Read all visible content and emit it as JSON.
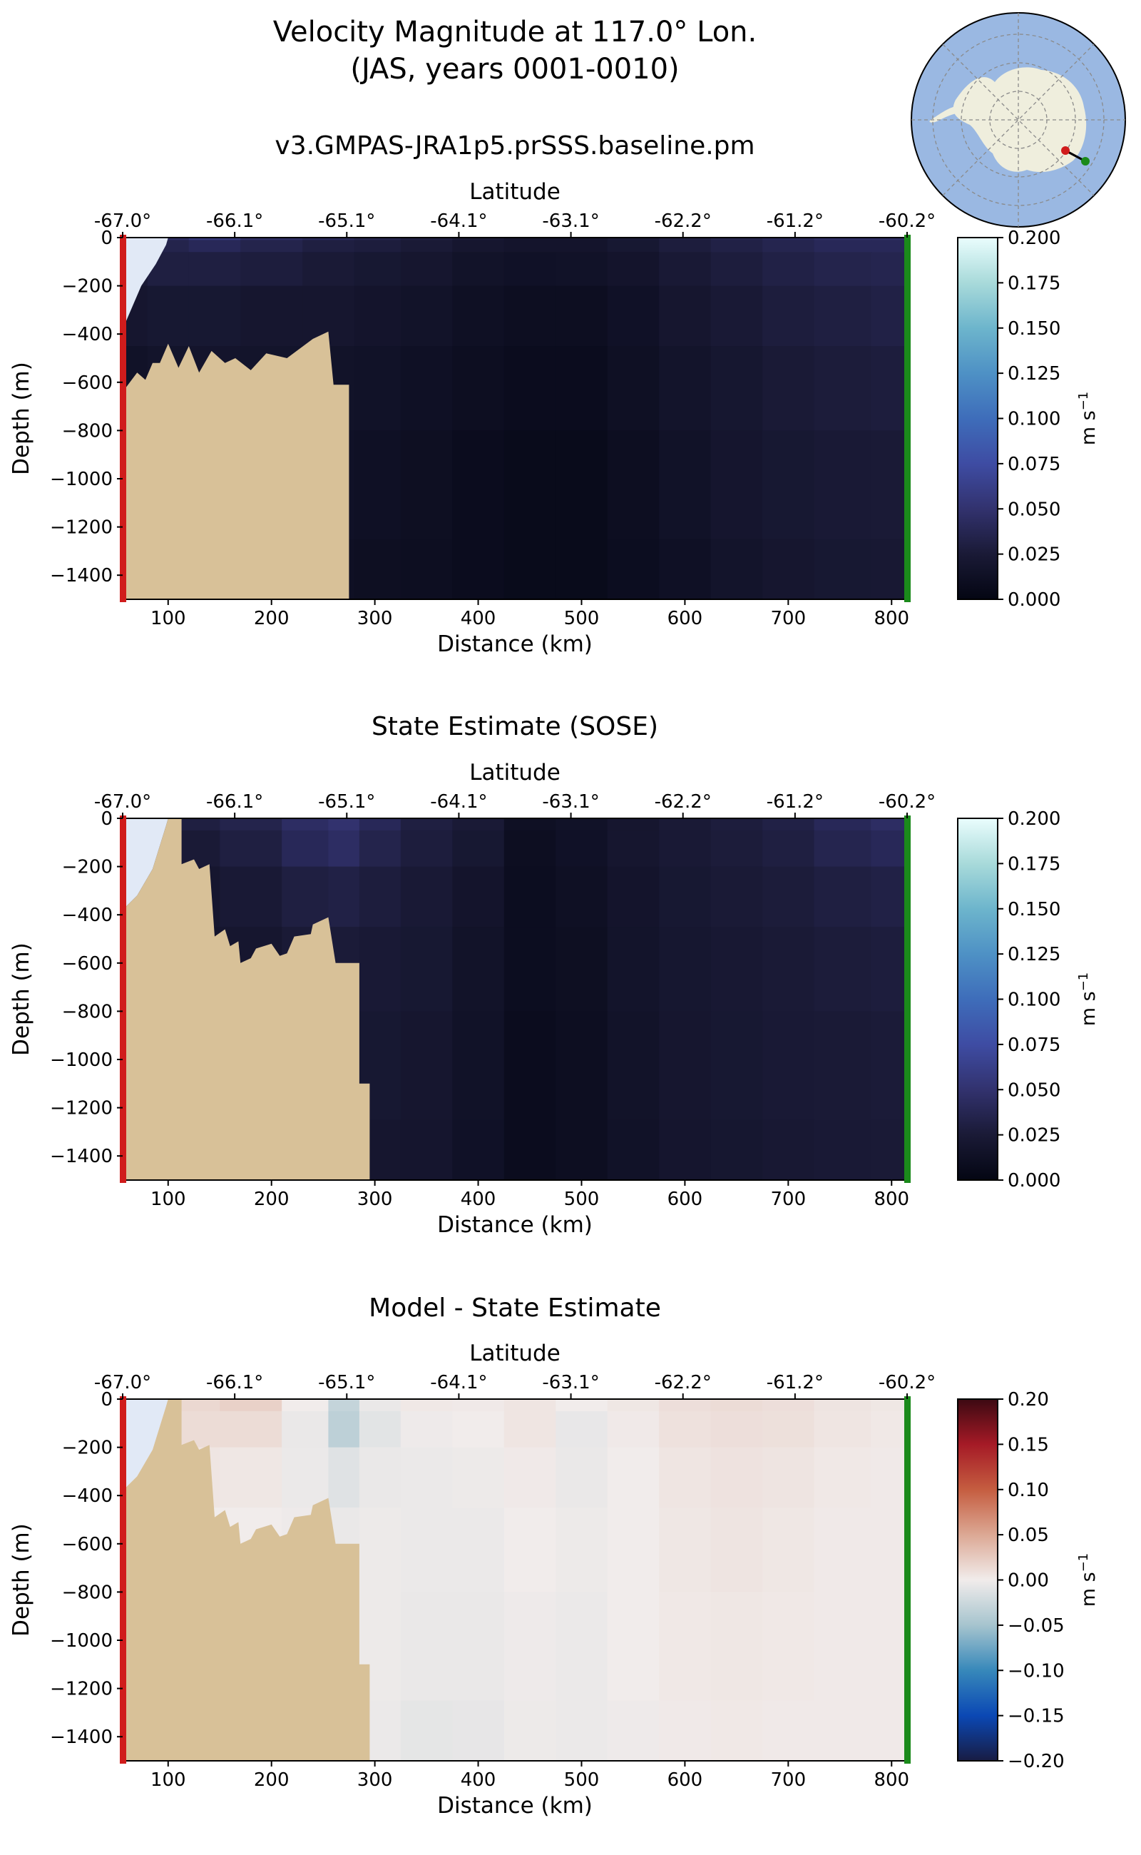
{
  "figure": {
    "title_line1": "Velocity Magnitude at 117.0° Lon.",
    "title_line2": "(JAS, years 0001-0010)"
  },
  "colors": {
    "land": "#d8c198",
    "ice_shelf": "#e1e9f6",
    "south_marker": "#d01c1c",
    "north_marker": "#1b8a1b",
    "ocean_map": "#9ab8e2",
    "continent_map": "#efeedd"
  },
  "chart_data": [
    {
      "type": "heatmap",
      "title": "v3.GMPAS-JRA1p5.prSSS.baseline.pm",
      "xlabel": "Distance (km)",
      "x2label": "Latitude",
      "ylabel": "Depth (m)",
      "colorbar_label": "m s",
      "colorbar_label_sup": "−1",
      "colormap": "ice",
      "clim": [
        0.0,
        0.2
      ],
      "xlim": [
        56,
        815
      ],
      "ylim": [
        -1500,
        0
      ],
      "x_ticks": [
        100,
        200,
        300,
        400,
        500,
        600,
        700,
        800
      ],
      "y_ticks": [
        0,
        -200,
        -400,
        -600,
        -800,
        -1000,
        -1200,
        -1400
      ],
      "y_tick_labels": [
        "0",
        "−200",
        "−400",
        "−600",
        "−800",
        "−1000",
        "−1200",
        "−1400"
      ],
      "lat_ticks": [
        "-67.0°",
        "-66.1°",
        "-65.1°",
        "-64.1°",
        "-63.1°",
        "-62.2°",
        "-61.2°",
        "-60.2°"
      ],
      "cbar_ticks": [
        "0.000",
        "0.025",
        "0.050",
        "0.075",
        "0.100",
        "0.125",
        "0.150",
        "0.175",
        "0.200"
      ],
      "field": {
        "distance_km": [
          60,
          100,
          140,
          200,
          260,
          300,
          350,
          400,
          450,
          500,
          550,
          600,
          650,
          700,
          750,
          810
        ],
        "depth_m": [
          0,
          -20,
          -100,
          -300,
          -600,
          -1000,
          -1500
        ],
        "values": [
          [
            0.035,
            0.045,
            0.055,
            0.045,
            0.04,
            0.035,
            0.03,
            0.025,
            0.02,
            0.02,
            0.025,
            0.03,
            0.035,
            0.04,
            0.045,
            0.045
          ],
          [
            0.03,
            0.035,
            0.04,
            0.035,
            0.03,
            0.028,
            0.025,
            0.02,
            0.018,
            0.018,
            0.022,
            0.028,
            0.032,
            0.036,
            0.04,
            0.04
          ],
          [
            0.025,
            0.03,
            0.03,
            0.028,
            0.025,
            0.022,
            0.02,
            0.016,
            0.014,
            0.015,
            0.018,
            0.024,
            0.028,
            0.032,
            0.035,
            0.036
          ],
          [
            0.02,
            0.022,
            0.022,
            0.02,
            0.02,
            0.018,
            0.016,
            0.012,
            0.01,
            0.01,
            0.014,
            0.02,
            0.024,
            0.028,
            0.03,
            0.032
          ],
          [
            0.015,
            0.017,
            0.018,
            0.017,
            0.016,
            0.015,
            0.013,
            0.01,
            0.008,
            0.008,
            0.012,
            0.017,
            0.021,
            0.025,
            0.027,
            0.028
          ],
          [
            0.012,
            0.013,
            0.014,
            0.014,
            0.014,
            0.013,
            0.011,
            0.008,
            0.006,
            0.006,
            0.01,
            0.015,
            0.019,
            0.022,
            0.024,
            0.025
          ],
          [
            0.01,
            0.011,
            0.012,
            0.012,
            0.012,
            0.011,
            0.01,
            0.008,
            0.006,
            0.006,
            0.009,
            0.013,
            0.017,
            0.02,
            0.022,
            0.023
          ]
        ]
      },
      "bathymetry": [
        [
          56,
          -640
        ],
        [
          70,
          -560
        ],
        [
          78,
          -590
        ],
        [
          85,
          -520
        ],
        [
          92,
          -520
        ],
        [
          100,
          -440
        ],
        [
          110,
          -540
        ],
        [
          120,
          -450
        ],
        [
          130,
          -560
        ],
        [
          142,
          -470
        ],
        [
          155,
          -520
        ],
        [
          165,
          -500
        ],
        [
          180,
          -550
        ],
        [
          195,
          -480
        ],
        [
          215,
          -500
        ],
        [
          240,
          -420
        ],
        [
          255,
          -390
        ],
        [
          260,
          -610
        ],
        [
          275,
          -610
        ],
        [
          275,
          -1500
        ]
      ],
      "ice_shelf": [
        [
          56,
          0
        ],
        [
          100,
          0
        ],
        [
          98,
          -30
        ],
        [
          88,
          -110
        ],
        [
          74,
          -200
        ],
        [
          64,
          -300
        ],
        [
          56,
          -380
        ]
      ]
    },
    {
      "type": "heatmap",
      "title": "State Estimate (SOSE)",
      "xlabel": "Distance (km)",
      "x2label": "Latitude",
      "ylabel": "Depth (m)",
      "colorbar_label": "m s",
      "colorbar_label_sup": "−1",
      "colormap": "ice",
      "clim": [
        0.0,
        0.2
      ],
      "xlim": [
        56,
        815
      ],
      "ylim": [
        -1500,
        0
      ],
      "x_ticks": [
        100,
        200,
        300,
        400,
        500,
        600,
        700,
        800
      ],
      "y_ticks": [
        0,
        -200,
        -400,
        -600,
        -800,
        -1000,
        -1200,
        -1400
      ],
      "y_tick_labels": [
        "0",
        "−200",
        "−400",
        "−600",
        "−800",
        "−1000",
        "−1200",
        "−1400"
      ],
      "lat_ticks": [
        "-67.0°",
        "-66.1°",
        "-65.1°",
        "-64.1°",
        "-63.1°",
        "-62.2°",
        "-61.2°",
        "-60.2°"
      ],
      "cbar_ticks": [
        "0.000",
        "0.025",
        "0.050",
        "0.075",
        "0.100",
        "0.125",
        "0.150",
        "0.175",
        "0.200"
      ],
      "field": {
        "distance_km": [
          60,
          120,
          180,
          240,
          270,
          300,
          350,
          400,
          450,
          500,
          550,
          600,
          650,
          700,
          750,
          810
        ],
        "depth_m": [
          0,
          -100,
          -300,
          -600,
          -1000,
          -1500
        ],
        "values": [
          [
            0.03,
            0.03,
            0.035,
            0.045,
            0.05,
            0.04,
            0.03,
            0.025,
            0.012,
            0.015,
            0.02,
            0.025,
            0.028,
            0.032,
            0.04,
            0.045
          ],
          [
            0.025,
            0.025,
            0.03,
            0.04,
            0.045,
            0.035,
            0.028,
            0.022,
            0.01,
            0.014,
            0.02,
            0.024,
            0.027,
            0.03,
            0.036,
            0.04
          ],
          [
            0.02,
            0.02,
            0.024,
            0.03,
            0.032,
            0.028,
            0.024,
            0.018,
            0.009,
            0.012,
            0.018,
            0.022,
            0.025,
            0.027,
            0.03,
            0.032
          ],
          [
            0.018,
            0.018,
            0.02,
            0.025,
            0.026,
            0.024,
            0.022,
            0.016,
            0.009,
            0.011,
            0.017,
            0.021,
            0.023,
            0.025,
            0.027,
            0.028
          ],
          [
            0.018,
            0.018,
            0.02,
            0.022,
            0.023,
            0.022,
            0.02,
            0.015,
            0.008,
            0.01,
            0.016,
            0.02,
            0.022,
            0.024,
            0.025,
            0.026
          ],
          [
            0.017,
            0.017,
            0.018,
            0.02,
            0.021,
            0.02,
            0.019,
            0.014,
            0.008,
            0.01,
            0.015,
            0.019,
            0.021,
            0.023,
            0.024,
            0.025
          ]
        ]
      },
      "bathymetry": [
        [
          56,
          -1500
        ],
        [
          56,
          -380
        ],
        [
          70,
          -320
        ],
        [
          85,
          -210
        ],
        [
          98,
          -30
        ],
        [
          100,
          0
        ],
        [
          113,
          0
        ],
        [
          113,
          -190
        ],
        [
          125,
          -170
        ],
        [
          130,
          -210
        ],
        [
          140,
          -190
        ],
        [
          145,
          -490
        ],
        [
          155,
          -460
        ],
        [
          160,
          -530
        ],
        [
          168,
          -510
        ],
        [
          170,
          -600
        ],
        [
          180,
          -580
        ],
        [
          185,
          -540
        ],
        [
          200,
          -520
        ],
        [
          208,
          -570
        ],
        [
          215,
          -560
        ],
        [
          222,
          -490
        ],
        [
          238,
          -480
        ],
        [
          240,
          -440
        ],
        [
          255,
          -410
        ],
        [
          262,
          -600
        ],
        [
          285,
          -600
        ],
        [
          285,
          -1100
        ],
        [
          295,
          -1100
        ],
        [
          295,
          -1500
        ]
      ],
      "ice_shelf": [
        [
          56,
          0
        ],
        [
          100,
          0
        ],
        [
          98,
          -30
        ],
        [
          85,
          -210
        ],
        [
          70,
          -320
        ],
        [
          56,
          -380
        ]
      ]
    },
    {
      "type": "heatmap",
      "title": "Model - State Estimate",
      "xlabel": "Distance (km)",
      "x2label": "Latitude",
      "ylabel": "Depth (m)",
      "colorbar_label": "m s",
      "colorbar_label_sup": "−1",
      "colormap": "balance",
      "clim": [
        -0.2,
        0.2
      ],
      "xlim": [
        56,
        815
      ],
      "ylim": [
        -1500,
        0
      ],
      "x_ticks": [
        100,
        200,
        300,
        400,
        500,
        600,
        700,
        800
      ],
      "y_ticks": [
        0,
        -200,
        -400,
        -600,
        -800,
        -1000,
        -1200,
        -1400
      ],
      "y_tick_labels": [
        "0",
        "−200",
        "−400",
        "−600",
        "−800",
        "−1000",
        "−1200",
        "−1400"
      ],
      "lat_ticks": [
        "-67.0°",
        "-66.1°",
        "-65.1°",
        "-64.1°",
        "-63.1°",
        "-62.2°",
        "-61.2°",
        "-60.2°"
      ],
      "cbar_ticks": [
        "0.20",
        "0.15",
        "0.10",
        "0.05",
        "0.00",
        "−0.05",
        "−0.10",
        "−0.15",
        "−0.20"
      ],
      "field": {
        "distance_km": [
          60,
          120,
          180,
          240,
          270,
          300,
          350,
          400,
          450,
          500,
          550,
          600,
          650,
          700,
          750,
          810
        ],
        "depth_m": [
          0,
          -100,
          -300,
          -600,
          -1000,
          -1500
        ],
        "values": [
          [
            0.01,
            0.015,
            0.02,
            0.0,
            -0.03,
            -0.005,
            0.003,
            0.002,
            0.005,
            0.0,
            0.004,
            0.01,
            0.012,
            0.01,
            0.006,
            0.004
          ],
          [
            0.006,
            0.012,
            0.012,
            -0.005,
            -0.035,
            -0.01,
            -0.002,
            0.0,
            0.005,
            -0.006,
            0.002,
            0.008,
            0.01,
            0.009,
            0.005,
            0.003
          ],
          [
            0.003,
            0.005,
            0.004,
            -0.004,
            -0.012,
            -0.005,
            -0.004,
            -0.003,
            0.002,
            -0.005,
            0.0,
            0.005,
            0.007,
            0.006,
            0.003,
            0.002
          ],
          [
            0.0,
            0.0,
            0.0,
            -0.002,
            -0.005,
            -0.003,
            -0.004,
            -0.004,
            0.0,
            -0.003,
            0.0,
            0.004,
            0.006,
            0.004,
            0.002,
            0.002
          ],
          [
            0.0,
            0.0,
            0.0,
            -0.002,
            -0.003,
            -0.003,
            -0.005,
            -0.005,
            -0.002,
            -0.004,
            0.0,
            0.003,
            0.004,
            0.003,
            0.002,
            0.002
          ],
          [
            0.0,
            0.0,
            0.0,
            -0.002,
            -0.003,
            -0.004,
            -0.008,
            -0.007,
            -0.003,
            -0.004,
            -0.002,
            0.002,
            0.003,
            0.002,
            0.002,
            0.002
          ]
        ]
      },
      "bathymetry": [
        [
          56,
          -1500
        ],
        [
          56,
          -380
        ],
        [
          70,
          -320
        ],
        [
          85,
          -210
        ],
        [
          98,
          -30
        ],
        [
          100,
          0
        ],
        [
          113,
          0
        ],
        [
          113,
          -190
        ],
        [
          125,
          -170
        ],
        [
          130,
          -210
        ],
        [
          140,
          -190
        ],
        [
          145,
          -490
        ],
        [
          155,
          -460
        ],
        [
          160,
          -530
        ],
        [
          168,
          -510
        ],
        [
          170,
          -600
        ],
        [
          180,
          -580
        ],
        [
          185,
          -540
        ],
        [
          200,
          -520
        ],
        [
          208,
          -570
        ],
        [
          215,
          -560
        ],
        [
          222,
          -490
        ],
        [
          238,
          -480
        ],
        [
          240,
          -440
        ],
        [
          255,
          -410
        ],
        [
          262,
          -600
        ],
        [
          285,
          -600
        ],
        [
          285,
          -1100
        ],
        [
          295,
          -1100
        ],
        [
          295,
          -1500
        ]
      ],
      "ice_shelf": [
        [
          56,
          0
        ],
        [
          100,
          0
        ],
        [
          98,
          -30
        ],
        [
          85,
          -210
        ],
        [
          70,
          -320
        ],
        [
          56,
          -380
        ]
      ]
    }
  ]
}
